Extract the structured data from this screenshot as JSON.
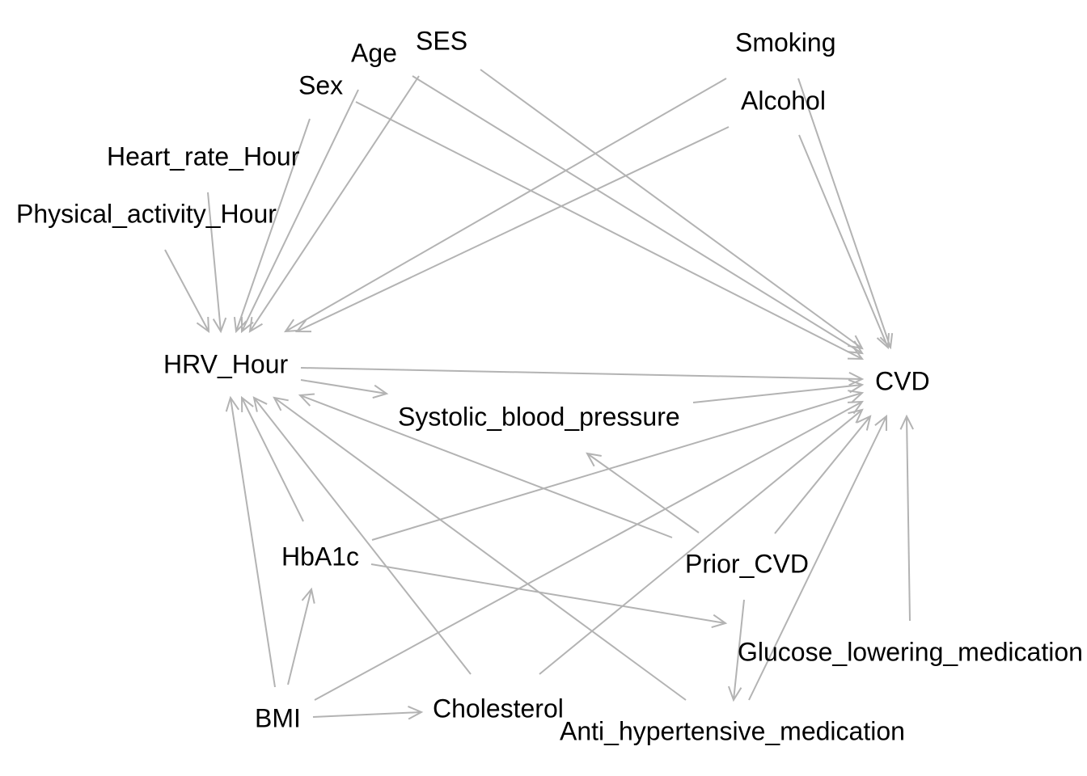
{
  "nodes": {
    "age": "Age",
    "ses": "SES",
    "sex": "Sex",
    "smoking": "Smoking",
    "alcohol": "Alcohol",
    "heart_rate_hour": "Heart_rate_Hour",
    "physical_activity_hour": "Physical_activity_Hour",
    "hrv_hour": "HRV_Hour",
    "cvd": "CVD",
    "systolic_blood_pressure": "Systolic_blood_pressure",
    "hba1c": "HbA1c",
    "prior_cvd": "Prior_CVD",
    "glucose_lowering_medication": "Glucose_lowering_medication",
    "bmi": "BMI",
    "cholesterol": "Cholesterol",
    "anti_hypertensive_medication": "Anti_hypertensive_medication"
  },
  "edges": [
    {
      "from": "physical_activity_hour",
      "to": "hrv_hour"
    },
    {
      "from": "heart_rate_hour",
      "to": "hrv_hour"
    },
    {
      "from": "sex",
      "to": "hrv_hour"
    },
    {
      "from": "age",
      "to": "hrv_hour"
    },
    {
      "from": "ses",
      "to": "hrv_hour"
    },
    {
      "from": "smoking",
      "to": "hrv_hour"
    },
    {
      "from": "alcohol",
      "to": "hrv_hour"
    },
    {
      "from": "sex",
      "to": "cvd"
    },
    {
      "from": "age",
      "to": "cvd"
    },
    {
      "from": "ses",
      "to": "cvd"
    },
    {
      "from": "smoking",
      "to": "cvd"
    },
    {
      "from": "alcohol",
      "to": "cvd"
    },
    {
      "from": "hrv_hour",
      "to": "cvd"
    },
    {
      "from": "hrv_hour",
      "to": "systolic_blood_pressure"
    },
    {
      "from": "systolic_blood_pressure",
      "to": "cvd"
    },
    {
      "from": "hba1c",
      "to": "cvd"
    },
    {
      "from": "bmi",
      "to": "cvd"
    },
    {
      "from": "cholesterol",
      "to": "cvd"
    },
    {
      "from": "prior_cvd",
      "to": "cvd"
    },
    {
      "from": "anti_hypertensive_medication",
      "to": "cvd"
    },
    {
      "from": "glucose_lowering_medication",
      "to": "cvd"
    },
    {
      "from": "bmi",
      "to": "hrv_hour"
    },
    {
      "from": "hba1c",
      "to": "hrv_hour"
    },
    {
      "from": "cholesterol",
      "to": "hrv_hour"
    },
    {
      "from": "anti_hypertensive_medication",
      "to": "hrv_hour"
    },
    {
      "from": "prior_cvd",
      "to": "hrv_hour"
    },
    {
      "from": "prior_cvd",
      "to": "systolic_blood_pressure"
    },
    {
      "from": "bmi",
      "to": "hba1c"
    },
    {
      "from": "bmi",
      "to": "cholesterol"
    },
    {
      "from": "hba1c",
      "to": "glucose_lowering_medication"
    },
    {
      "from": "prior_cvd",
      "to": "anti_hypertensive_medication"
    }
  ],
  "colors": {
    "edge": "#b3b3b3",
    "label": "#000000",
    "background": "#ffffff"
  }
}
